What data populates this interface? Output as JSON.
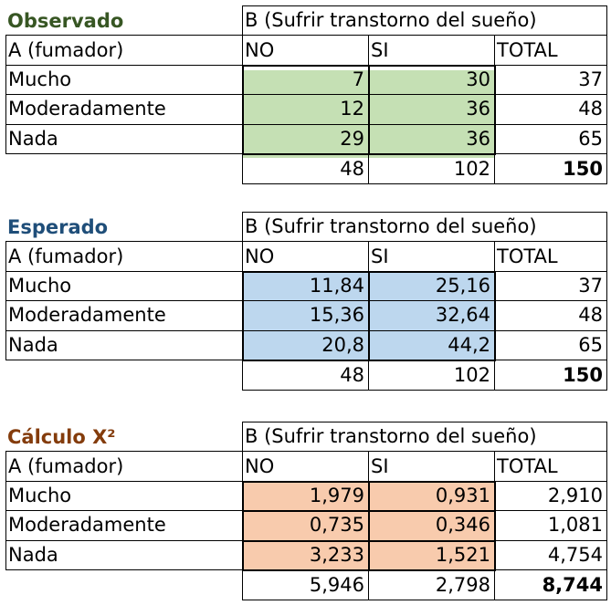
{
  "colors": {
    "observed": "#c5e0b4",
    "expected": "#bdd7ee",
    "chi": "#f8cbad",
    "title_obs": "#375623",
    "title_exp": "#1f4e79",
    "title_chi": "#843c0c"
  },
  "tables": [
    {
      "key": "obs",
      "title": "Observado",
      "header_b": "B (Sufrir transtorno del sueño)",
      "header_a": "A (fumador)",
      "col_no": "NO",
      "col_si": "SI",
      "col_total": "TOTAL",
      "rows": [
        {
          "label": "Mucho",
          "no": "7",
          "si": "30",
          "total": "37"
        },
        {
          "label": "Moderadamente",
          "no": "12",
          "si": "36",
          "total": "48"
        },
        {
          "label": "Nada",
          "no": "29",
          "si": "36",
          "total": "65"
        }
      ],
      "totals": {
        "no": "48",
        "si": "102",
        "total": "150"
      }
    },
    {
      "key": "exp",
      "title": "Esperado",
      "header_b": "B (Sufrir transtorno del sueño)",
      "header_a": "A (fumador)",
      "col_no": "NO",
      "col_si": "SI",
      "col_total": "TOTAL",
      "rows": [
        {
          "label": "Mucho",
          "no": "11,84",
          "si": "25,16",
          "total": "37"
        },
        {
          "label": "Moderadamente",
          "no": "15,36",
          "si": "32,64",
          "total": "48"
        },
        {
          "label": "Nada",
          "no": "20,8",
          "si": "44,2",
          "total": "65"
        }
      ],
      "totals": {
        "no": "48",
        "si": "102",
        "total": "150"
      }
    },
    {
      "key": "chi",
      "title": "Cálculo X²",
      "header_b": "B (Sufrir transtorno del sueño)",
      "header_a": "A (fumador)",
      "col_no": "NO",
      "col_si": "SI",
      "col_total": "TOTAL",
      "rows": [
        {
          "label": "Mucho",
          "no": "1,979",
          "si": "0,931",
          "total": "2,910"
        },
        {
          "label": "Moderadamente",
          "no": "0,735",
          "si": "0,346",
          "total": "1,081"
        },
        {
          "label": "Nada",
          "no": "3,233",
          "si": "1,521",
          "total": "4,754"
        }
      ],
      "totals": {
        "no": "5,946",
        "si": "2,798",
        "total": "8,744"
      }
    }
  ]
}
